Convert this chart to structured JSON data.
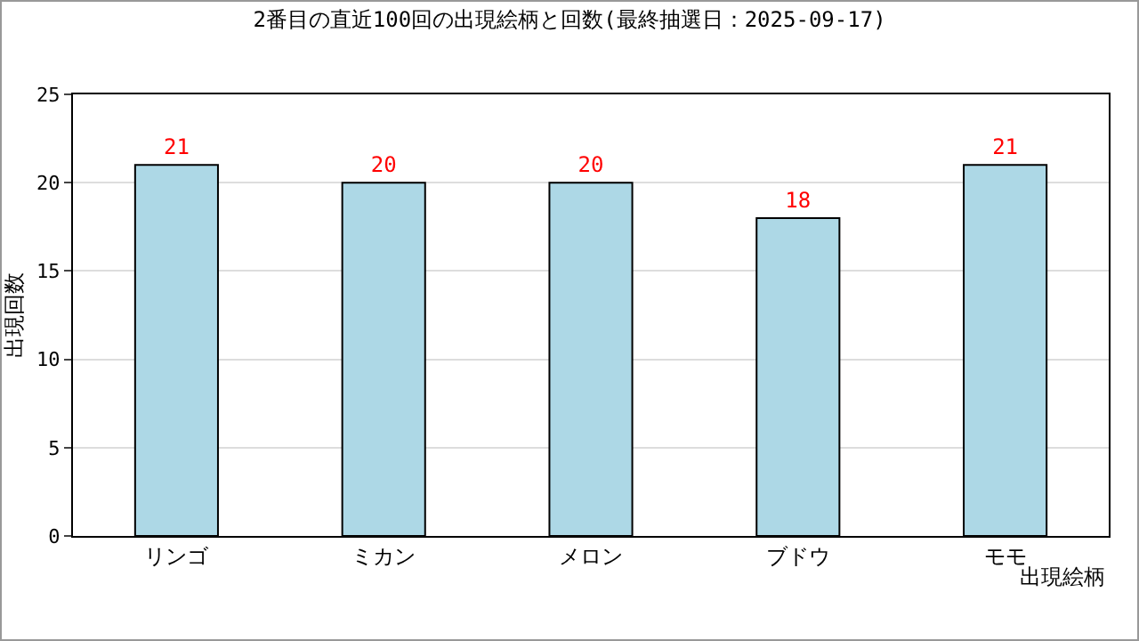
{
  "chart_data": {
    "type": "bar",
    "title": "2番目の直近100回の出現絵柄と回数(最終抽選日：2025-09-17)",
    "xlabel": "出現絵柄",
    "ylabel": "出現回数",
    "categories": [
      "リンゴ",
      "ミカン",
      "メロン",
      "ブドウ",
      "モモ"
    ],
    "values": [
      21,
      20,
      20,
      18,
      21
    ],
    "color": "#add8e6",
    "ylim": [
      0,
      25
    ],
    "yticks": [
      0,
      5,
      10,
      15,
      20,
      25
    ],
    "grid": "y",
    "data_labels": true
  }
}
